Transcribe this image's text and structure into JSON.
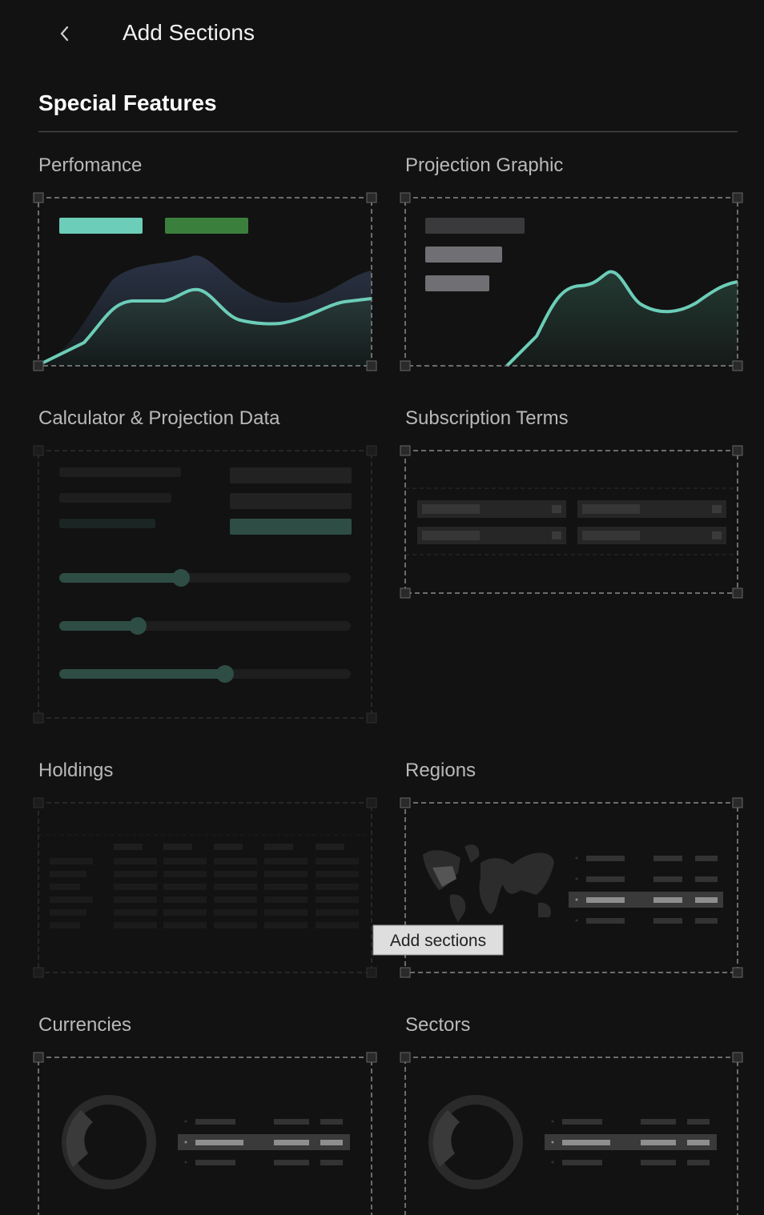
{
  "header": {
    "title": "Add Sections"
  },
  "section": {
    "title": "Special Features"
  },
  "cards": [
    {
      "title": "Perfomance"
    },
    {
      "title": "Projection Graphic"
    },
    {
      "title": "Calculator & Projection Data"
    },
    {
      "title": "Subscription Terms"
    },
    {
      "title": "Holdings"
    },
    {
      "title": "Regions"
    },
    {
      "title": "Currencies"
    },
    {
      "title": "Sectors"
    }
  ],
  "tooltip": {
    "text": "Add sections"
  }
}
